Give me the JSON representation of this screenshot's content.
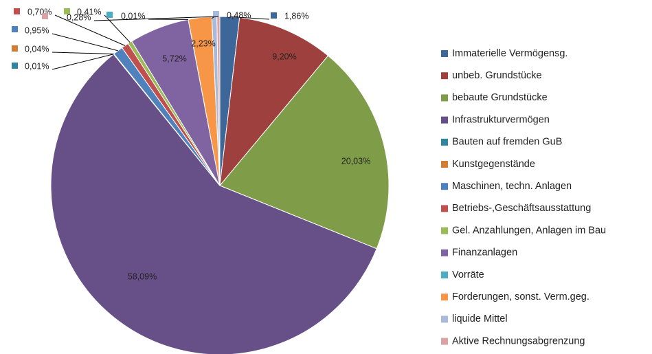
{
  "chart_data": {
    "type": "pie",
    "categories": [
      "Immaterielle Vermögensg.",
      "unbeb. Grundstücke",
      "bebaute Grundstücke",
      "Infrastrukturvermögen",
      "Bauten auf fremden GuB",
      "Kunstgegenstände",
      "Maschinen, techn. Anlagen",
      "Betriebs-,Geschäftsausstattung",
      "Gel. Anzahlungen, Anlagen im Bau",
      "Finanzanlagen",
      "Vorräte",
      "Forderungen, sonst. Verm.geg.",
      "liquide Mittel",
      "Aktive Rechnungsabgrenzung"
    ],
    "values": [
      1.86,
      9.2,
      20.03,
      58.09,
      0.01,
      0.04,
      0.95,
      0.7,
      0.41,
      5.72,
      0.01,
      2.23,
      0.48,
      0.28
    ],
    "value_labels": [
      "1,86%",
      "9,20%",
      "20,03%",
      "58,09%",
      "0,01%",
      "0,04%",
      "0,95%",
      "0,70%",
      "0,41%",
      "5,72%",
      "0,01%",
      "2,23%",
      "0,48%",
      "0,28%"
    ],
    "colors": [
      "#3d6699",
      "#9e413e",
      "#7f9d49",
      "#674f87",
      "#31859c",
      "#d07e36",
      "#4f81bd",
      "#c0504d",
      "#9bbb59",
      "#8064a2",
      "#4bacc6",
      "#f79646",
      "#a9b9da",
      "#d9a3a3"
    ],
    "legend": "right"
  }
}
